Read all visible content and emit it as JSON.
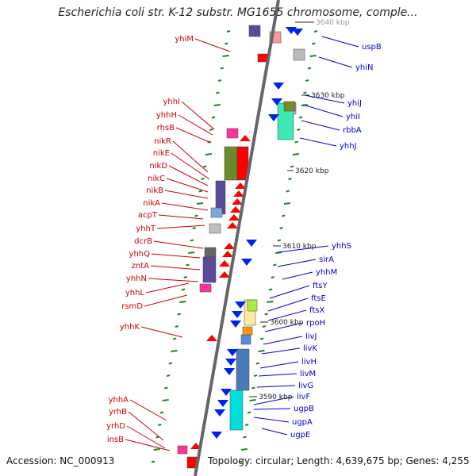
{
  "title": "Escherichia coli str. K-12 substr. MG1655 chromosome, comple...",
  "footer": {
    "accession": "Accession: NC_000913",
    "topology": "Topology: circular; Length: 4,639,675 bp; Genes: 4,255"
  },
  "colors": {
    "left_label": "#cc0000",
    "right_label": "#0000cc",
    "forward_gene": "#ff0000",
    "reverse_gene": "#0022ee",
    "tick": "#1a8a1a",
    "backbone": "#666666"
  },
  "scale_labels": [
    "3640 kbp",
    "3630 kbp",
    "3620 kbp",
    "3610 kbp",
    "3600 kbp",
    "3590 kbp"
  ],
  "left_genes": [
    "yhiM",
    "yhhI",
    "yhhH",
    "rhsB",
    "nikR",
    "nikE",
    "nikD",
    "nikC",
    "nikB",
    "nikA",
    "acpT",
    "yhhT",
    "dcrB",
    "yhhQ",
    "zntA",
    "yhhN",
    "yhhL",
    "rsmD",
    "yhhK",
    "yhhA",
    "yrhB",
    "yrhD",
    "insB"
  ],
  "right_genes": [
    "uspB",
    "yhiN",
    "yhiJ",
    "yhiI",
    "rbbA",
    "yhhJ",
    "yhhS",
    "sirA",
    "yhhM",
    "ftsY",
    "ftsE",
    "ftsX",
    "rpoH",
    "livJ",
    "livK",
    "livH",
    "livM",
    "livG",
    "livF",
    "ugpB",
    "ugpA",
    "ugpE"
  ]
}
